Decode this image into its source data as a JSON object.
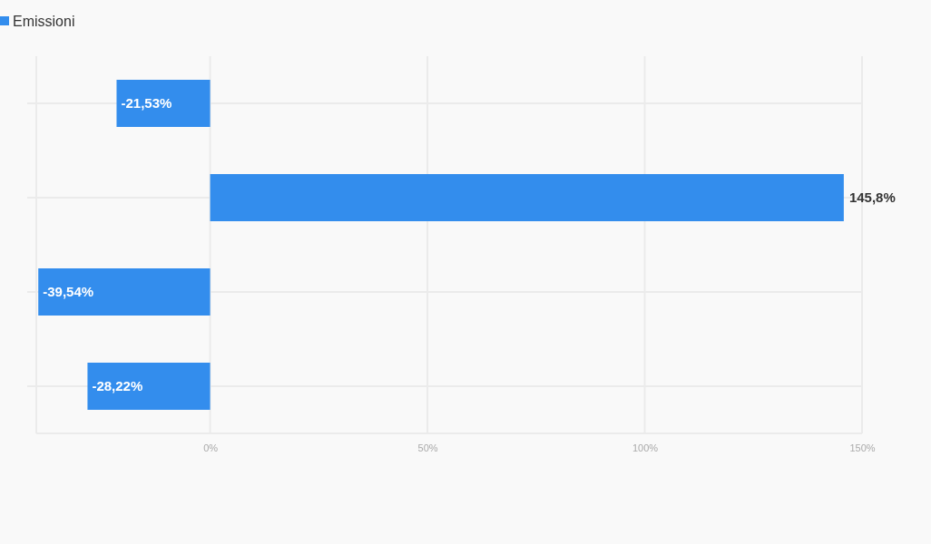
{
  "chart_data": {
    "type": "bar",
    "orientation": "horizontal",
    "categories": [
      null,
      null,
      null,
      null
    ],
    "series": [
      {
        "name": "Emissioni",
        "color": "#338ded",
        "values": [
          -21.53,
          145.8,
          -39.54,
          -28.22
        ],
        "value_labels": [
          "-21,53%",
          "145,8%",
          "-39,54%",
          "-28,22%"
        ]
      }
    ],
    "xlim": [
      -40,
      150
    ],
    "xticks": [
      {
        "value": 0,
        "label": "0%"
      },
      {
        "value": 50,
        "label": "50%"
      },
      {
        "value": 100,
        "label": "100%"
      },
      {
        "value": 150,
        "label": "150%"
      }
    ],
    "grid": true,
    "legend": "top left"
  }
}
